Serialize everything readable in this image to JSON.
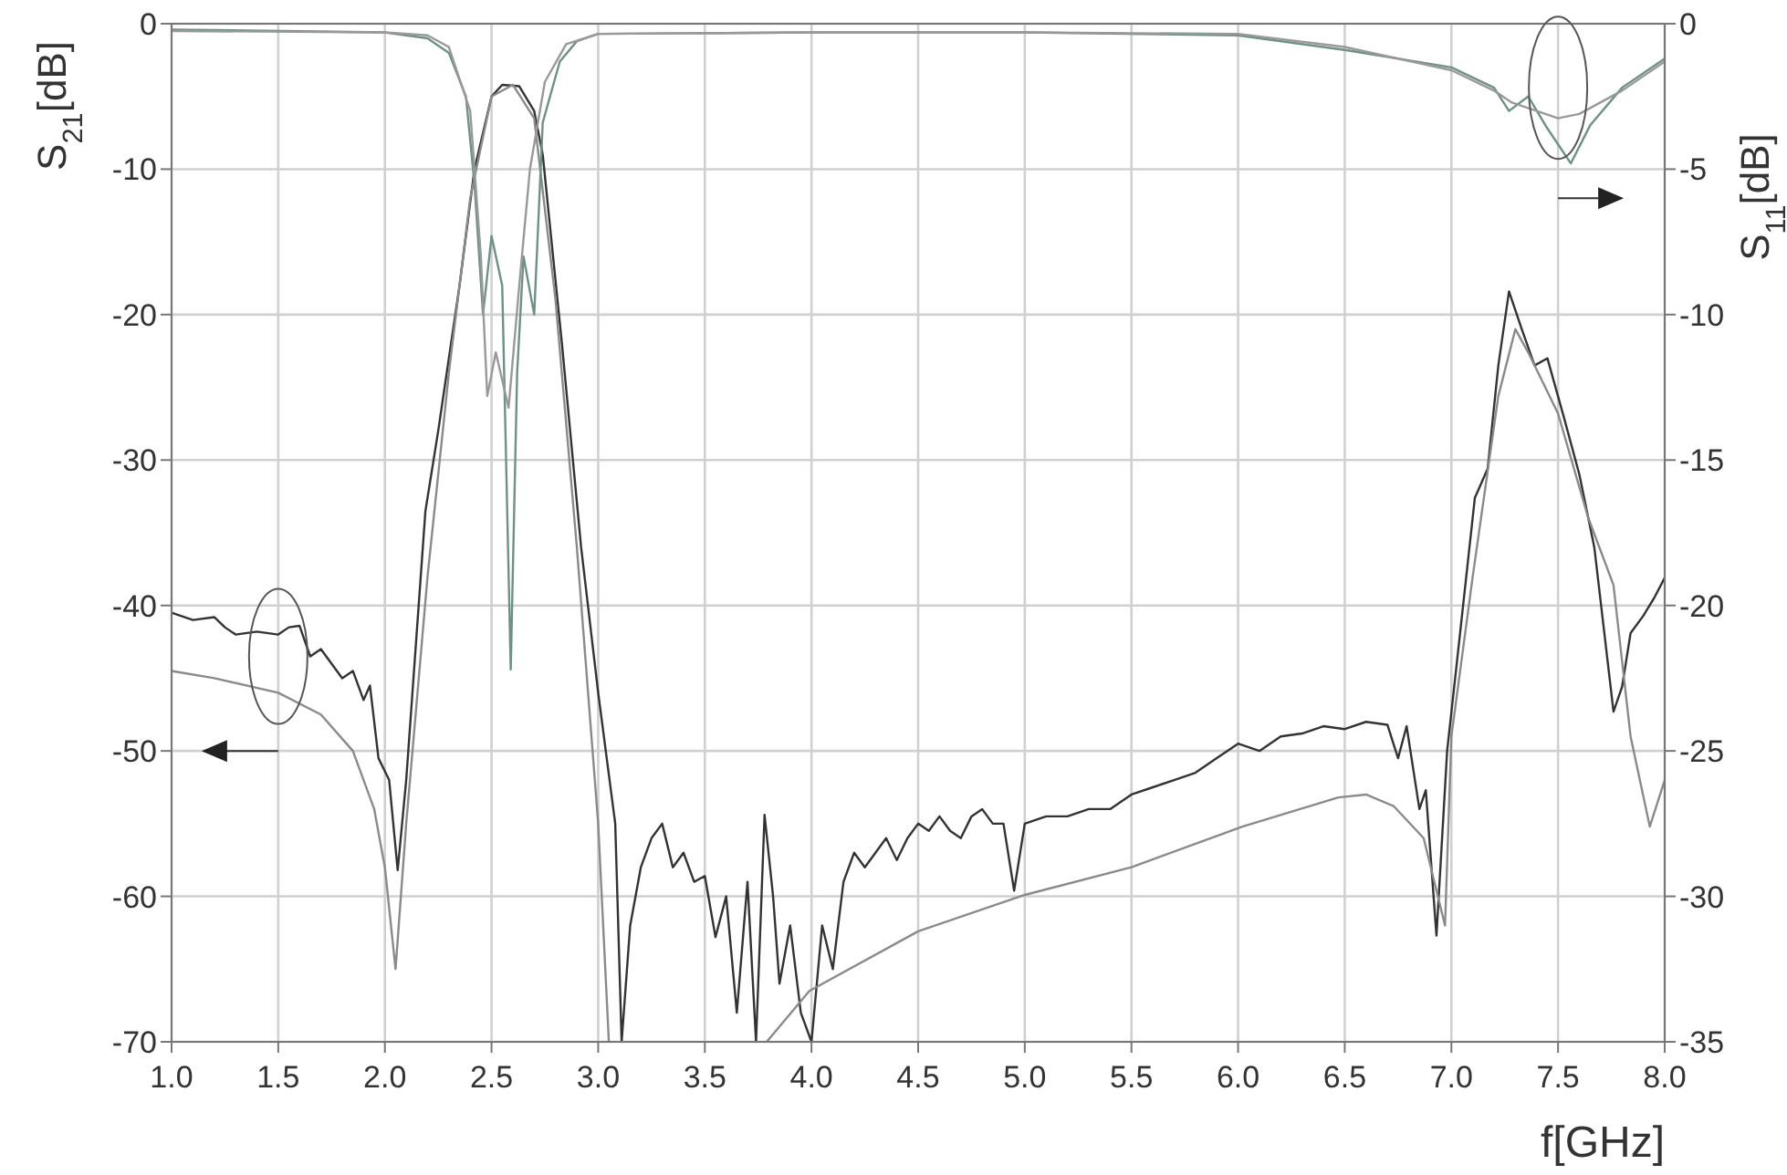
{
  "chart_data": {
    "type": "line",
    "xlabel": "f[GHz]",
    "ylabel": "S$_{21}$[dB]",
    "y2label": "S$_{11}$[dB]",
    "xlim": [
      1,
      8
    ],
    "xticks": [
      {
        "value": 1,
        "label": "1.0"
      },
      {
        "value": 1.5,
        "label": "1.5"
      },
      {
        "value": 2,
        "label": "2.0"
      },
      {
        "value": 2.5,
        "label": "2.5"
      },
      {
        "value": 3,
        "label": "3.0"
      },
      {
        "value": 3.5,
        "label": "3.5"
      },
      {
        "value": 4,
        "label": "4.0"
      },
      {
        "value": 4.5,
        "label": "4.5"
      },
      {
        "value": 5,
        "label": "5.0"
      },
      {
        "value": 5.5,
        "label": "5.5"
      },
      {
        "value": 6,
        "label": "6.0"
      },
      {
        "value": 6.5,
        "label": "6.5"
      },
      {
        "value": 7,
        "label": "7.0"
      },
      {
        "value": 7.5,
        "label": "7.5"
      },
      {
        "value": 8,
        "label": "8.0"
      }
    ],
    "ylim": [
      -70,
      0
    ],
    "yticks": [
      -70,
      -60,
      -50,
      -40,
      -30,
      -20,
      -10,
      0
    ],
    "y2lim": [
      -35,
      0
    ],
    "y2ticks": [
      -35,
      -30,
      -25,
      -20,
      -15,
      -10,
      -5,
      0
    ],
    "grid": true,
    "marker": "none",
    "line_style": "solid",
    "series": [
      {
        "color": "#333333",
        "x": [
          1.0,
          1.1,
          1.2,
          1.25,
          1.3,
          1.4,
          1.5,
          1.55,
          1.6,
          1.65,
          1.7,
          1.75,
          1.8,
          1.85,
          1.9,
          1.93,
          1.97,
          2.02,
          2.06,
          2.1,
          2.19,
          2.25,
          2.35,
          2.42,
          2.5,
          2.55,
          2.63,
          2.7,
          2.74,
          2.83,
          2.92,
          3.0,
          3.08,
          3.11,
          3.15,
          3.2,
          3.25,
          3.3,
          3.35,
          3.4,
          3.45,
          3.5,
          3.55,
          3.6,
          3.65,
          3.7,
          3.74,
          3.78,
          3.82,
          3.85,
          3.9,
          3.95,
          4.0,
          4.05,
          4.1,
          4.15,
          4.2,
          4.25,
          4.3,
          4.35,
          4.4,
          4.45,
          4.5,
          4.55,
          4.6,
          4.65,
          4.7,
          4.75,
          4.8,
          4.85,
          4.9,
          4.95,
          5.0,
          5.1,
          5.2,
          5.3,
          5.4,
          5.5,
          5.6,
          5.7,
          5.8,
          5.9,
          6.0,
          6.1,
          6.2,
          6.3,
          6.4,
          6.5,
          6.6,
          6.7,
          6.75,
          6.79,
          6.85,
          6.88,
          6.93,
          6.98,
          7.04,
          7.11,
          7.17,
          7.22,
          7.27,
          7.33,
          7.39,
          7.45,
          7.53,
          7.6,
          7.67,
          7.76,
          7.8,
          7.84,
          7.9,
          7.95,
          8.0
        ],
        "values": [
          -40.5,
          -41,
          -40.8,
          -41.5,
          -42,
          -41.8,
          -42,
          -41.5,
          -41.4,
          -43.5,
          -43,
          -44,
          -45,
          -44.5,
          -46.5,
          -45.5,
          -50.5,
          -52,
          -58.2,
          -52,
          -33.5,
          -28,
          -18,
          -10,
          -5,
          -4.2,
          -4.3,
          -6,
          -9,
          -22,
          -36,
          -46,
          -55,
          -70,
          -62,
          -58,
          -56,
          -55,
          -58,
          -57,
          -59,
          -58.6,
          -62.8,
          -60,
          -68,
          -59,
          -70,
          -54.4,
          -60,
          -66,
          -62,
          -68,
          -70,
          -62,
          -65,
          -59,
          -57,
          -58,
          -57,
          -56,
          -57.5,
          -56,
          -55,
          -55.5,
          -54.5,
          -55.5,
          -56,
          -54.5,
          -54,
          -55,
          -55,
          -59.6,
          -55,
          -54.5,
          -54.5,
          -54,
          -54,
          -53,
          -52.5,
          -52,
          -51.5,
          -50.5,
          -49.5,
          -50,
          -49,
          -48.8,
          -48.3,
          -48.5,
          -48,
          -48.2,
          -50.5,
          -48.3,
          -54,
          -52.7,
          -62.7,
          -50,
          -42,
          -32.6,
          -30.6,
          -23.5,
          -18.4,
          -21,
          -23.5,
          -23,
          -27.2,
          -31,
          -36,
          -47.3,
          -45.6,
          -41.9,
          -40.7,
          -39.5,
          -38.1
        ]
      },
      {
        "color": "#8a8a8a",
        "x": [
          1.0,
          1.2,
          1.5,
          1.7,
          1.85,
          1.95,
          2.0,
          2.05,
          2.1,
          2.2,
          2.3,
          2.4,
          2.5,
          2.6,
          2.7,
          2.8,
          2.9,
          3.0,
          3.05
        ],
        "values": [
          -44.5,
          -45,
          -46,
          -47.5,
          -50,
          -54,
          -58,
          -65,
          -55,
          -38,
          -24,
          -12,
          -5,
          -4.2,
          -6.5,
          -19,
          -36,
          -55,
          -70
        ]
      },
      {
        "color": "#8a8a8a",
        "x": [
          3.79,
          3.99,
          4.5,
          5.0,
          5.5,
          6.02,
          6.47,
          6.6,
          6.73,
          6.87,
          6.97,
          7.0,
          7.1,
          7.22,
          7.3,
          7.36,
          7.5,
          7.64,
          7.76,
          7.84,
          7.93,
          8.0
        ],
        "values": [
          -70,
          -66.5,
          -62.4,
          -59.9,
          -58,
          -55.2,
          -53.2,
          -53,
          -53.8,
          -56,
          -62,
          -49,
          -38,
          -25.6,
          -21,
          -22.6,
          -26.8,
          -33.9,
          -38.6,
          -49,
          -55.2,
          -52
        ]
      },
      {
        "color": "#6f9088",
        "axis": "y2",
        "x": [
          1.0,
          2.0,
          2.2,
          2.3,
          2.38,
          2.42,
          2.46,
          2.5,
          2.55,
          2.59,
          2.62,
          2.65,
          2.7,
          2.74,
          2.82,
          2.9,
          3.0,
          4.0,
          5.0,
          6.0,
          6.5,
          7.0,
          7.2,
          7.27,
          7.36,
          7.45,
          7.56,
          7.65,
          7.8,
          8.0
        ],
        "values": [
          -0.2,
          -0.3,
          -0.5,
          -1,
          -2.5,
          -5.5,
          -10,
          -7.3,
          -9,
          -22.2,
          -12,
          -8,
          -10,
          -3.4,
          -1.3,
          -0.6,
          -0.35,
          -0.3,
          -0.3,
          -0.4,
          -0.9,
          -1.5,
          -2.2,
          -3,
          -2.5,
          -3.6,
          -4.8,
          -3.5,
          -2.2,
          -1.2
        ]
      },
      {
        "color": "#999999",
        "axis": "y2",
        "x": [
          1.0,
          2.0,
          2.2,
          2.3,
          2.4,
          2.45,
          2.48,
          2.52,
          2.58,
          2.63,
          2.68,
          2.75,
          2.85,
          3.0,
          4.0,
          5.0,
          6.0,
          6.5,
          7.0,
          7.2,
          7.28,
          7.4,
          7.5,
          7.6,
          7.8,
          8.0
        ],
        "values": [
          -0.25,
          -0.3,
          -0.4,
          -0.8,
          -3,
          -8,
          -12.8,
          -11.3,
          -13.2,
          -9,
          -5,
          -2,
          -0.7,
          -0.35,
          -0.3,
          -0.3,
          -0.35,
          -0.8,
          -1.6,
          -2.3,
          -2.7,
          -3,
          -3.25,
          -3.1,
          -2.3,
          -1.3
        ]
      }
    ]
  }
}
